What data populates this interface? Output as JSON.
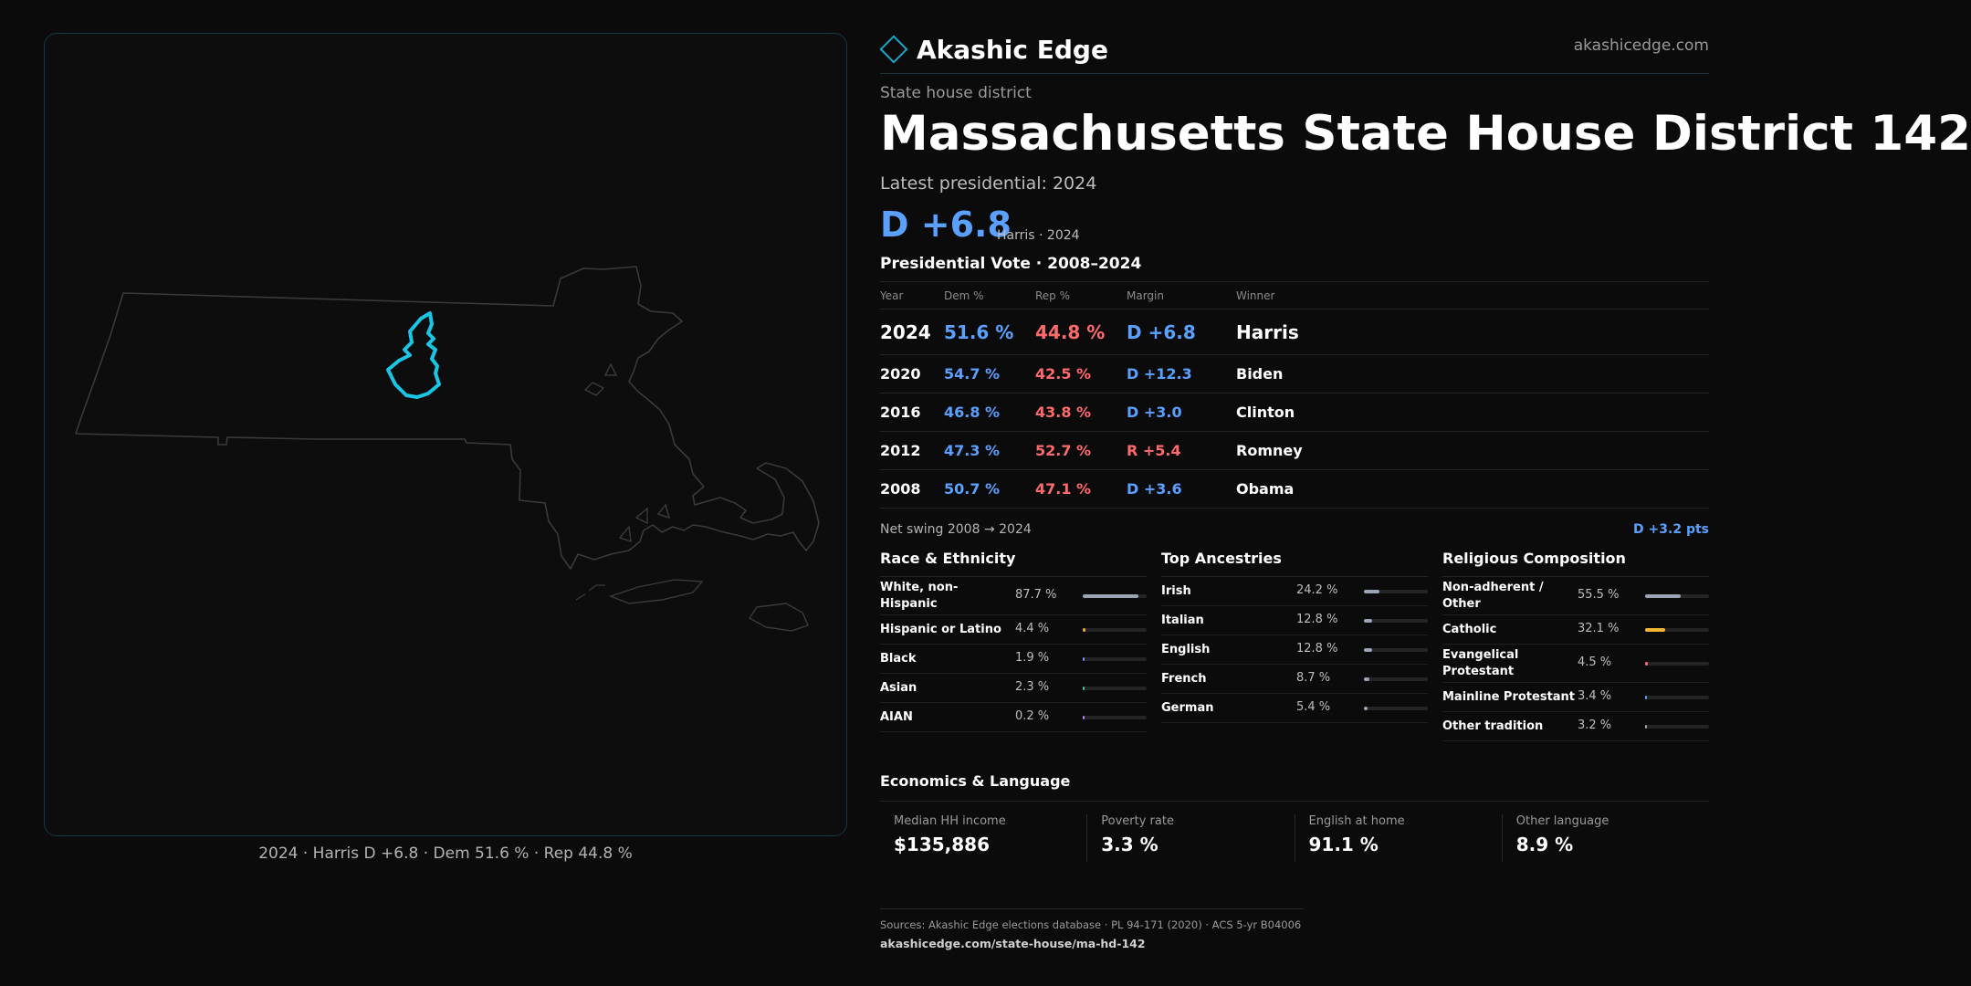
{
  "brand": {
    "name": "Akashic Edge",
    "url": "akashicedge.com",
    "icon": "diamond-logo-icon"
  },
  "page": {
    "kicker": "State house district",
    "title": "Massachusetts State House District 142",
    "latest_label": "Latest presidential: 2024",
    "margin_big": "D +6.8",
    "margin_note": "Harris · 2024",
    "table_title": "Presidential Vote · 2008–2024"
  },
  "map": {
    "caption": "2024 · Harris D +6.8 · Dem 51.6 % · Rep 44.8 %",
    "highlight_color": "#19c6e6",
    "outline_color": "#3a3a3c"
  },
  "vote_table": {
    "headers": {
      "year": "Year",
      "dem": "Dem %",
      "rep": "Rep %",
      "margin": "Margin",
      "winner": "Winner"
    },
    "rows": [
      {
        "year": "2024",
        "dem": "51.6 %",
        "rep": "44.8 %",
        "margin": "D +6.8",
        "party": "D",
        "winner": "Harris"
      },
      {
        "year": "2020",
        "dem": "54.7 %",
        "rep": "42.5 %",
        "margin": "D +12.3",
        "party": "D",
        "winner": "Biden"
      },
      {
        "year": "2016",
        "dem": "46.8 %",
        "rep": "43.8 %",
        "margin": "D +3.0",
        "party": "D",
        "winner": "Clinton"
      },
      {
        "year": "2012",
        "dem": "47.3 %",
        "rep": "52.7 %",
        "margin": "R +5.4",
        "party": "R",
        "winner": "Romney"
      },
      {
        "year": "2008",
        "dem": "50.7 %",
        "rep": "47.1 %",
        "margin": "D +3.6",
        "party": "D",
        "winner": "Obama"
      }
    ]
  },
  "swing": {
    "label": "Net swing 2008 → 2024",
    "value": "D +3.2 pts"
  },
  "race": {
    "title": "Race & Ethnicity",
    "rows": [
      {
        "label": "White, non-Hispanic",
        "value": "87.7 %",
        "pct": 87.7,
        "color": "#9aa4b2",
        "two_line": true
      },
      {
        "label": "Hispanic or Latino",
        "value": "4.4 %",
        "pct": 4.4,
        "color": "#e8a33d"
      },
      {
        "label": "Black",
        "value": "1.9 %",
        "pct": 1.9,
        "color": "#7a8cff"
      },
      {
        "label": "Asian",
        "value": "2.3 %",
        "pct": 2.3,
        "color": "#3ecf8e"
      },
      {
        "label": "AIAN",
        "value": "0.2 %",
        "pct": 0.2,
        "color": "#c07bff"
      }
    ]
  },
  "ancestry": {
    "title": "Top Ancestries",
    "rows": [
      {
        "label": "Irish",
        "value": "24.2 %",
        "pct": 24.2,
        "color": "#9aa4b2"
      },
      {
        "label": "Italian",
        "value": "12.8 %",
        "pct": 12.8,
        "color": "#9aa4b2"
      },
      {
        "label": "English",
        "value": "12.8 %",
        "pct": 12.8,
        "color": "#9aa4b2"
      },
      {
        "label": "French",
        "value": "8.7 %",
        "pct": 8.7,
        "color": "#9aa4b2"
      },
      {
        "label": "German",
        "value": "5.4 %",
        "pct": 5.4,
        "color": "#9aa4b2"
      }
    ]
  },
  "religion": {
    "title": "Religious Composition",
    "rows": [
      {
        "label": "Non-adherent / Other",
        "value": "55.5 %",
        "pct": 55.5,
        "color": "#9aa4b2",
        "two_line": true
      },
      {
        "label": "Catholic",
        "value": "32.1 %",
        "pct": 32.1,
        "color": "#f2b632"
      },
      {
        "label": "Evangelical Protestant",
        "value": "4.5 %",
        "pct": 4.5,
        "color": "#ff6b6b",
        "two_line": true
      },
      {
        "label": "Mainline Protestant",
        "value": "3.4 %",
        "pct": 3.4,
        "color": "#5aa0ff"
      },
      {
        "label": "Other tradition",
        "value": "3.2 %",
        "pct": 3.2,
        "color": "#9aa4b2"
      }
    ]
  },
  "economics": {
    "title": "Economics & Language",
    "cells": [
      {
        "label": "Median HH income",
        "value": "$135,886"
      },
      {
        "label": "Poverty rate",
        "value": "3.3 %"
      },
      {
        "label": "English at home",
        "value": "91.1 %"
      },
      {
        "label": "Other language",
        "value": "8.9 %"
      }
    ]
  },
  "sources": {
    "text": "Sources: Akashic Edge elections database · PL 94-171 (2020) · ACS 5-yr B04006",
    "url": "akashicedge.com/state-house/ma-hd-142"
  }
}
